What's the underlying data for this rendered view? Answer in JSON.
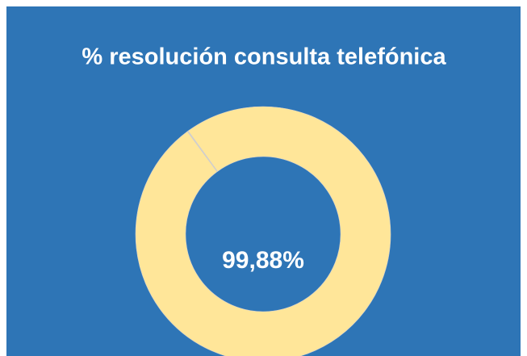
{
  "chart_data": {
    "type": "donut",
    "title": "% resolución consulta telefónica",
    "values": [
      99.88,
      0.12
    ],
    "value_labels": [
      "99,88%",
      null
    ],
    "colors": [
      "#ffe699",
      "#d0cece"
    ],
    "background": "#2e75b6"
  }
}
